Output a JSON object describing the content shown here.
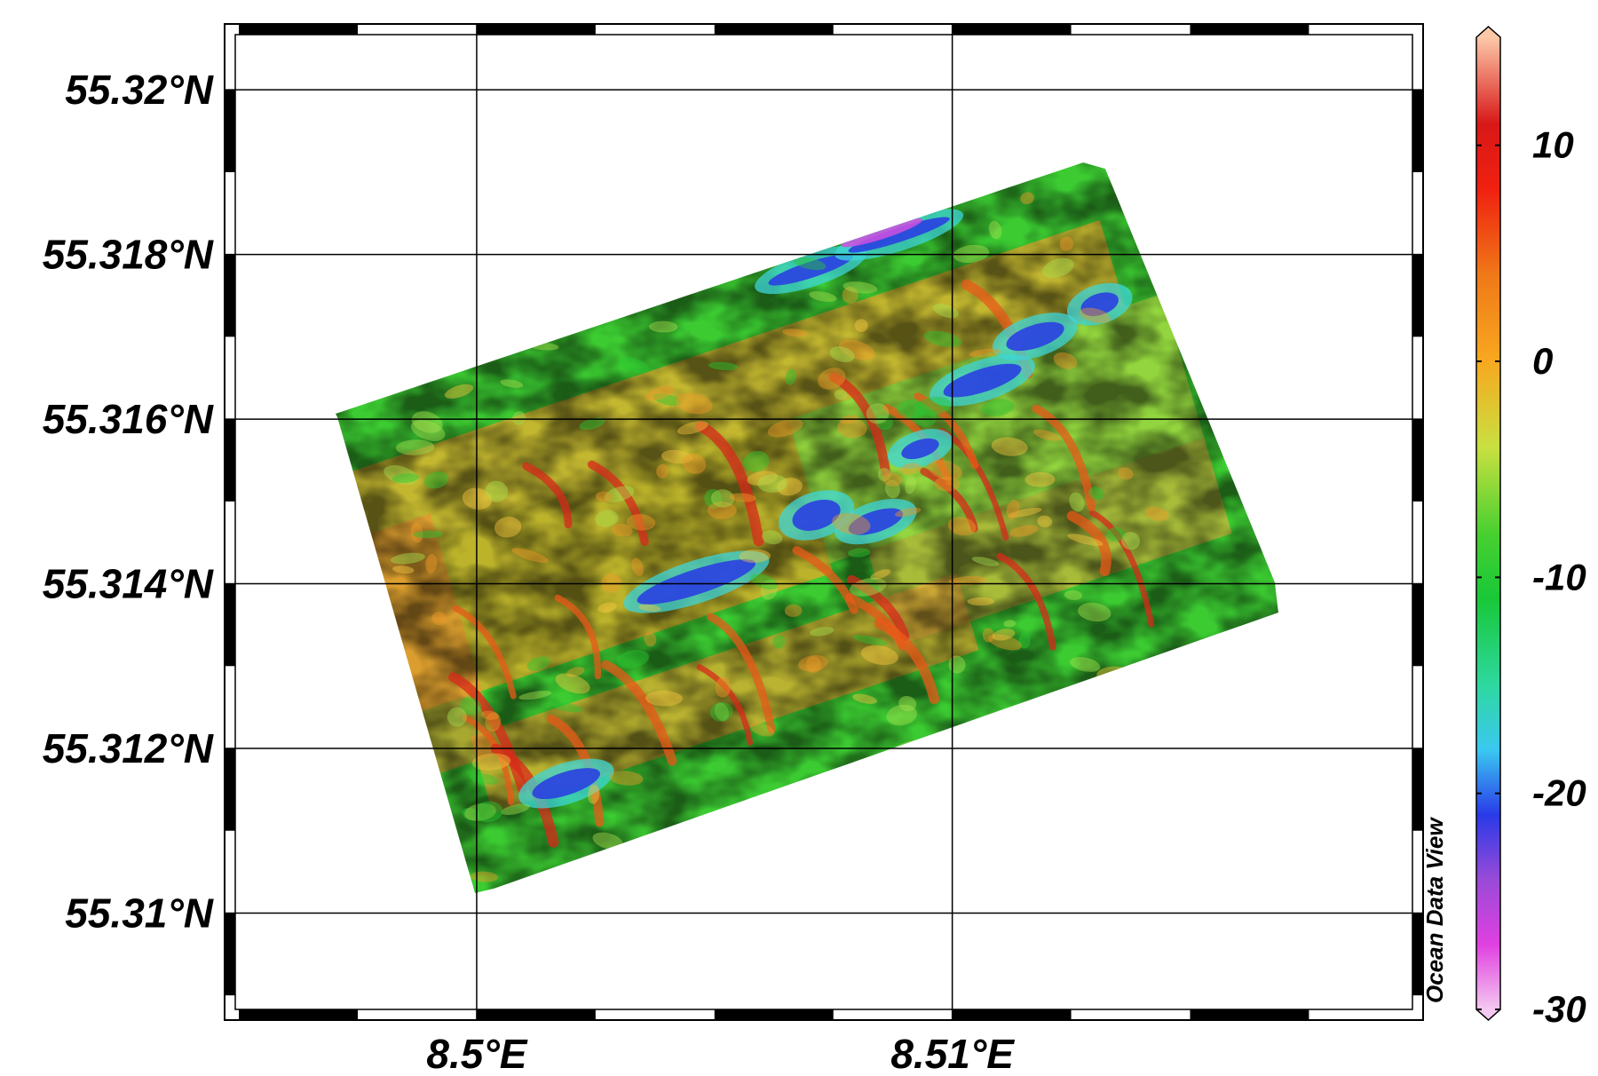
{
  "map": {
    "lat_ticks": [
      {
        "value": 55.32,
        "label": "55.32°N"
      },
      {
        "value": 55.318,
        "label": "55.318°N"
      },
      {
        "value": 55.316,
        "label": "55.316°N"
      },
      {
        "value": 55.314,
        "label": "55.314°N"
      },
      {
        "value": 55.312,
        "label": "55.312°N"
      },
      {
        "value": 55.31,
        "label": "55.31°N"
      }
    ],
    "lon_ticks": [
      {
        "value": 8.5,
        "label": "8.5°E"
      },
      {
        "value": 8.51,
        "label": "8.51°E"
      }
    ],
    "lon_range": [
      8.4947,
      8.5199
    ],
    "lat_range": [
      55.3087,
      55.3208
    ],
    "grid": true,
    "data_field": {
      "colormap": "odv-rainbow",
      "color_scale_min": -30,
      "color_scale_max": 15
    }
  },
  "colorbar": {
    "ticks": [
      {
        "value": 10,
        "label": "10"
      },
      {
        "value": 0,
        "label": "0"
      },
      {
        "value": -10,
        "label": "-10"
      },
      {
        "value": -20,
        "label": "-20"
      },
      {
        "value": -30,
        "label": "-30"
      }
    ],
    "range": [
      -30,
      15
    ],
    "stops": [
      {
        "v": -30,
        "color": "#f4c8f0"
      },
      {
        "v": -27,
        "color": "#e040e0"
      },
      {
        "v": -24,
        "color": "#9a4ad8"
      },
      {
        "v": -21,
        "color": "#2a3ae8"
      },
      {
        "v": -18,
        "color": "#3ac8f0"
      },
      {
        "v": -15,
        "color": "#2ed8a0"
      },
      {
        "v": -11,
        "color": "#18c838"
      },
      {
        "v": -8,
        "color": "#48d030"
      },
      {
        "v": -4,
        "color": "#c8e040"
      },
      {
        "v": 0,
        "color": "#f8a820"
      },
      {
        "v": 4,
        "color": "#f07818"
      },
      {
        "v": 8,
        "color": "#f02010"
      },
      {
        "v": 11,
        "color": "#d81818"
      },
      {
        "v": 15,
        "color": "#fcc8a8"
      }
    ]
  },
  "credit": {
    "text": "Ocean Data View"
  }
}
